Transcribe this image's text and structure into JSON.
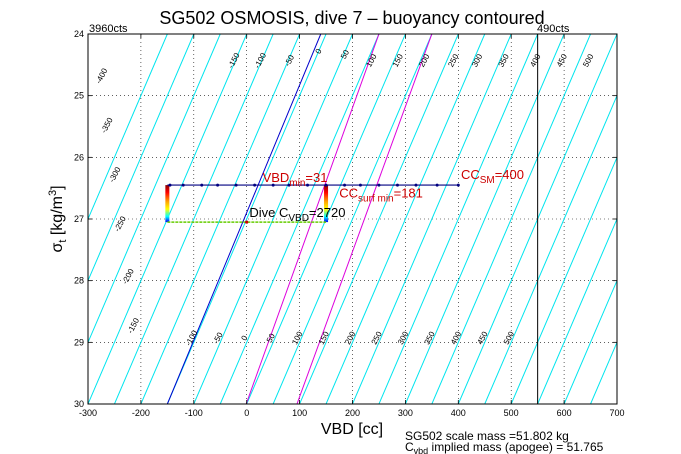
{
  "chart_data": {
    "type": "line",
    "title": "SG502 OSMOSIS, dive 7 – buoyancy contoured",
    "xlabel": "VBD [cc]",
    "ylabel": {
      "main": "σ",
      "sub": "t",
      "unit": " [kg/m",
      "unit_sup": "3",
      "unit_end": "]"
    },
    "xlim": [
      -300,
      700
    ],
    "ylim": [
      30,
      24
    ],
    "y_reversed": true,
    "grid": true,
    "x_ticks": [
      -300,
      -200,
      -100,
      0,
      100,
      200,
      300,
      400,
      500,
      600,
      700
    ],
    "y_ticks": [
      24,
      25,
      26,
      27,
      28,
      29,
      30
    ],
    "corner_labels": {
      "left": "3960cts",
      "right": "490cts"
    },
    "vbd_limit_line": 550,
    "buoyancy_contours": {
      "color": "#00e5ee",
      "slope_cc_per_sigma": -50,
      "offsets_at_sigma_24": [
        -150,
        -100,
        -50,
        0,
        50,
        100,
        150,
        200,
        250,
        300,
        350,
        400,
        450,
        500,
        550,
        600,
        650,
        700,
        750,
        800,
        850,
        900,
        950,
        1000
      ]
    },
    "contour_labels": [
      {
        "text": "-400",
        "x": -270,
        "y": 24.7
      },
      {
        "text": "-350",
        "x": -260,
        "y": 25.5
      },
      {
        "text": "-300",
        "x": -245,
        "y": 26.3
      },
      {
        "text": "-250",
        "x": -235,
        "y": 27.1
      },
      {
        "text": "-200",
        "x": -220,
        "y": 27.95
      },
      {
        "text": "-150",
        "x": -210,
        "y": 28.75
      },
      {
        "text": "-150",
        "x": -20,
        "y": 24.45
      },
      {
        "text": "-100",
        "x": 30,
        "y": 24.45
      },
      {
        "text": "-50",
        "x": 85,
        "y": 24.45
      },
      {
        "text": "0",
        "x": 140,
        "y": 24.3
      },
      {
        "text": "50",
        "x": 190,
        "y": 24.35
      },
      {
        "text": "100",
        "x": 240,
        "y": 24.45
      },
      {
        "text": "150",
        "x": 290,
        "y": 24.45
      },
      {
        "text": "200",
        "x": 340,
        "y": 24.45
      },
      {
        "text": "250",
        "x": 395,
        "y": 24.45
      },
      {
        "text": "300",
        "x": 440,
        "y": 24.45
      },
      {
        "text": "350",
        "x": 490,
        "y": 24.45
      },
      {
        "text": "400",
        "x": 550,
        "y": 24.45
      },
      {
        "text": "450",
        "x": 600,
        "y": 24.45
      },
      {
        "text": "500",
        "x": 650,
        "y": 24.45
      },
      {
        "text": "-100",
        "x": -100,
        "y": 28.95
      },
      {
        "text": "-50",
        "x": -50,
        "y": 28.95
      },
      {
        "text": "0",
        "x": 0,
        "y": 28.95
      },
      {
        "text": "50",
        "x": 50,
        "y": 28.95
      },
      {
        "text": "100",
        "x": 100,
        "y": 28.95
      },
      {
        "text": "150",
        "x": 150,
        "y": 28.95
      },
      {
        "text": "200",
        "x": 200,
        "y": 28.95
      },
      {
        "text": "250",
        "x": 250,
        "y": 28.95
      },
      {
        "text": "300",
        "x": 300,
        "y": 28.95
      },
      {
        "text": "350",
        "x": 350,
        "y": 28.95
      },
      {
        "text": "400",
        "x": 400,
        "y": 28.95
      },
      {
        "text": "450",
        "x": 450,
        "y": 28.95
      },
      {
        "text": "500",
        "x": 500,
        "y": 28.95
      }
    ],
    "highlight_lines": [
      {
        "color": "#0000cc",
        "points": [
          [
            140,
            24
          ],
          [
            -150,
            30
          ]
        ]
      },
      {
        "color": "#dd00dd",
        "points": [
          [
            250,
            24
          ],
          [
            -1,
            30
          ]
        ]
      },
      {
        "color": "#dd00dd",
        "points": [
          [
            350,
            24
          ],
          [
            95,
            30
          ]
        ]
      }
    ],
    "dive_path": {
      "color": "#000080",
      "line": {
        "x": [
          -150,
          400
        ],
        "y": 26.45
      },
      "markers_x": [
        -145,
        -120,
        -85,
        -55,
        -20,
        15,
        50,
        80,
        115,
        150,
        185,
        215,
        250,
        285,
        320,
        360,
        400
      ]
    },
    "gradient_bars": [
      {
        "x": -150,
        "y_top": 26.45,
        "y_bottom": 27.05
      },
      {
        "x": 150,
        "y_top": 26.45,
        "y_bottom": 27.05
      }
    ],
    "dive_bottom": {
      "x": [
        -150,
        150
      ],
      "y": 27.05,
      "color": "#66cc00",
      "marker_x": 0
    },
    "annotations": [
      {
        "text": "VBD",
        "sub": "min",
        "value": "=31",
        "x": 30,
        "y": 26.4,
        "color": "#cc0000"
      },
      {
        "text": "CC",
        "sub": "surf min",
        "value": "=181",
        "x": 175,
        "y": 26.65,
        "color": "#cc0000"
      },
      {
        "text": "CC",
        "sub": "SM",
        "value": "=400",
        "x": 405,
        "y": 26.35,
        "color": "#cc0000"
      },
      {
        "text": "Dive C",
        "sub": "VBD",
        "value": "=2720",
        "x": 5,
        "y": 26.97,
        "color": "#000000"
      }
    ],
    "footer": [
      {
        "text": "SG502 scale mass =51.802 kg"
      },
      {
        "text": "C",
        "sub": "vbd",
        "rest": " implied mass (apogee) = 51.765"
      }
    ]
  }
}
